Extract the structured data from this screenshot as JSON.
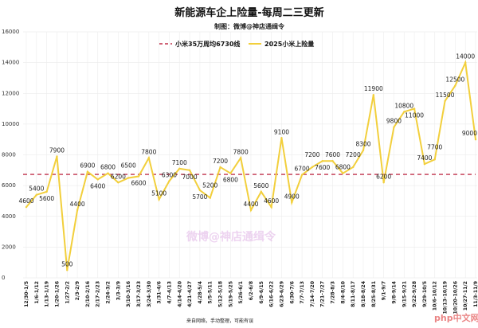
{
  "chart_data": {
    "type": "line",
    "title": "新能源车企上险量-每周二三更新",
    "subtitle": "制图：微博@神店通缉令",
    "footer": "来自网络，手动整理，可能有误",
    "watermark": "微博@神店通缉令",
    "ylim": [
      0,
      16000
    ],
    "yticks": [
      0,
      2000,
      4000,
      6000,
      8000,
      10000,
      12000,
      14000,
      16000
    ],
    "grid": true,
    "legend_position": "top-center",
    "categories": [
      "12/30-1/5",
      "1/6-1/12",
      "1/13-1/19",
      "1/20-1/26",
      "1/27-2/2",
      "2/3-2/9",
      "2/10-2/16",
      "2/17-2/23",
      "2/24-3/2",
      "3/3-3/9",
      "3/10-3/16",
      "3/17-3/23",
      "3/24-3/30",
      "3/31-4/6",
      "4/7-4/13",
      "4/14-4/20",
      "4/21-4/27",
      "4/28-5/4",
      "5/5-5/11",
      "5/12-5/18",
      "5/19-5/25",
      "5/26-6/1",
      "6/2-6/8",
      "6/9-6/15",
      "6/16-6/22",
      "6/23-6/29",
      "6/30-7/6",
      "7/7-7/13",
      "7/14-7/20",
      "7/21-7/27",
      "7/28-8/3",
      "8/4-8/10",
      "8/11-8/17",
      "8/18-8/24",
      "8/25-8/31",
      "9/1-9/7",
      "9/8-9/14",
      "9/15-9/21",
      "9/22-9/28",
      "9/29-10/5",
      "10/6-10/12",
      "10/13-10/19",
      "10/20-10/26",
      "10/27-11/2",
      "11/3-11/9"
    ],
    "series": [
      {
        "name": "2025小米上险量",
        "color": "#f2cf3c",
        "values": [
          4600,
          5400,
          5600,
          7900,
          500,
          4400,
          6900,
          6400,
          6800,
          6200,
          6500,
          6600,
          7800,
          5100,
          6300,
          7100,
          7000,
          5700,
          5200,
          7200,
          6800,
          7800,
          4400,
          5600,
          4600,
          9100,
          4900,
          6700,
          7200,
          7600,
          7600,
          6800,
          7200,
          8300,
          11900,
          6200,
          9800,
          10800,
          11000,
          7400,
          7700,
          11500,
          12500,
          14000,
          9000
        ]
      }
    ],
    "reference_line": {
      "name": "小米35万周均6730线",
      "value": 6730,
      "color": "#c0304a",
      "style": "dashed"
    }
  }
}
